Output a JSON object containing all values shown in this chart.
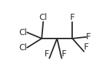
{
  "background": "#ffffff",
  "atoms": {
    "C1": [
      0.32,
      0.5
    ],
    "C2": [
      0.52,
      0.5
    ],
    "C3": [
      0.72,
      0.5
    ]
  },
  "bonds": [
    [
      "C1",
      "C2"
    ],
    [
      "C2",
      "C3"
    ]
  ],
  "substituents": {
    "Cl1": {
      "from": "C1",
      "to": [
        0.13,
        0.38
      ],
      "label": "Cl",
      "ha": "right",
      "va": "center"
    },
    "Cl2": {
      "from": "C1",
      "to": [
        0.13,
        0.58
      ],
      "label": "Cl",
      "ha": "right",
      "va": "center"
    },
    "Cl3": {
      "from": "C1",
      "to": [
        0.34,
        0.72
      ],
      "label": "Cl",
      "ha": "center",
      "va": "bottom"
    },
    "F1": {
      "from": "C2",
      "to": [
        0.42,
        0.24
      ],
      "label": "F",
      "ha": "right",
      "va": "bottom"
    },
    "F2": {
      "from": "C2",
      "to": [
        0.58,
        0.24
      ],
      "label": "F",
      "ha": "left",
      "va": "bottom"
    },
    "F3": {
      "from": "C3",
      "to": [
        0.87,
        0.33
      ],
      "label": "F",
      "ha": "left",
      "va": "bottom"
    },
    "F4": {
      "from": "C3",
      "to": [
        0.9,
        0.52
      ],
      "label": "F",
      "ha": "left",
      "va": "center"
    },
    "F5": {
      "from": "C3",
      "to": [
        0.72,
        0.72
      ],
      "label": "F",
      "ha": "center",
      "va": "bottom"
    }
  },
  "font_size": 9,
  "line_width": 1.4,
  "line_color": "#2a2a2a",
  "text_color": "#2a2a2a"
}
